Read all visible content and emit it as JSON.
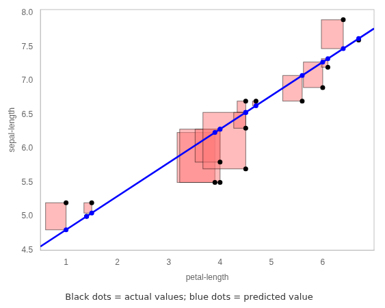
{
  "chart_data": {
    "type": "scatter",
    "xlabel": "petal-length",
    "ylabel": "sepal-length",
    "caption": "Black dots = actual values; blue dots = predicted value",
    "xlim": [
      0.5,
      7.0
    ],
    "ylim": [
      4.5,
      8.05
    ],
    "xticks": [
      1,
      2,
      3,
      4,
      5,
      6
    ],
    "yticks": [
      4.5,
      {
        "value": 5.0,
        "label": "5.0"
      },
      5.5,
      {
        "value": 6.0,
        "label": "6.0"
      },
      6.5,
      {
        "value": 7.0,
        "label": "7.0"
      },
      7.5,
      {
        "value": 8.0,
        "label": "8.0"
      }
    ],
    "grid": false,
    "x": [
      1.0,
      1.4,
      1.5,
      3.9,
      4.0,
      4.0,
      4.5,
      4.5,
      4.7,
      4.5,
      5.6,
      6.0,
      6.1,
      6.4,
      6.7
    ],
    "series": [
      {
        "type": "square",
        "color": "#FF7777"
      },
      {
        "type": "line",
        "color": "blue",
        "x": [
          0.5,
          7.0
        ],
        "values": [
          4.5535,
          7.771
        ]
      },
      {
        "type": "scatter",
        "color": "blue",
        "values": [
          4.801,
          4.999,
          5.0485,
          6.2365,
          6.286,
          6.286,
          6.5335,
          6.5335,
          6.6325,
          6.5335,
          7.078,
          7.276,
          7.3255,
          7.474,
          7.6225
        ]
      },
      {
        "type": "scatter",
        "color": "black",
        "values": [
          5.2,
          5.0,
          5.2,
          5.5,
          5.5,
          5.8,
          5.7,
          6.7,
          6.7,
          6.3,
          6.7,
          6.9,
          7.2,
          7.9,
          7.6
        ]
      }
    ]
  }
}
